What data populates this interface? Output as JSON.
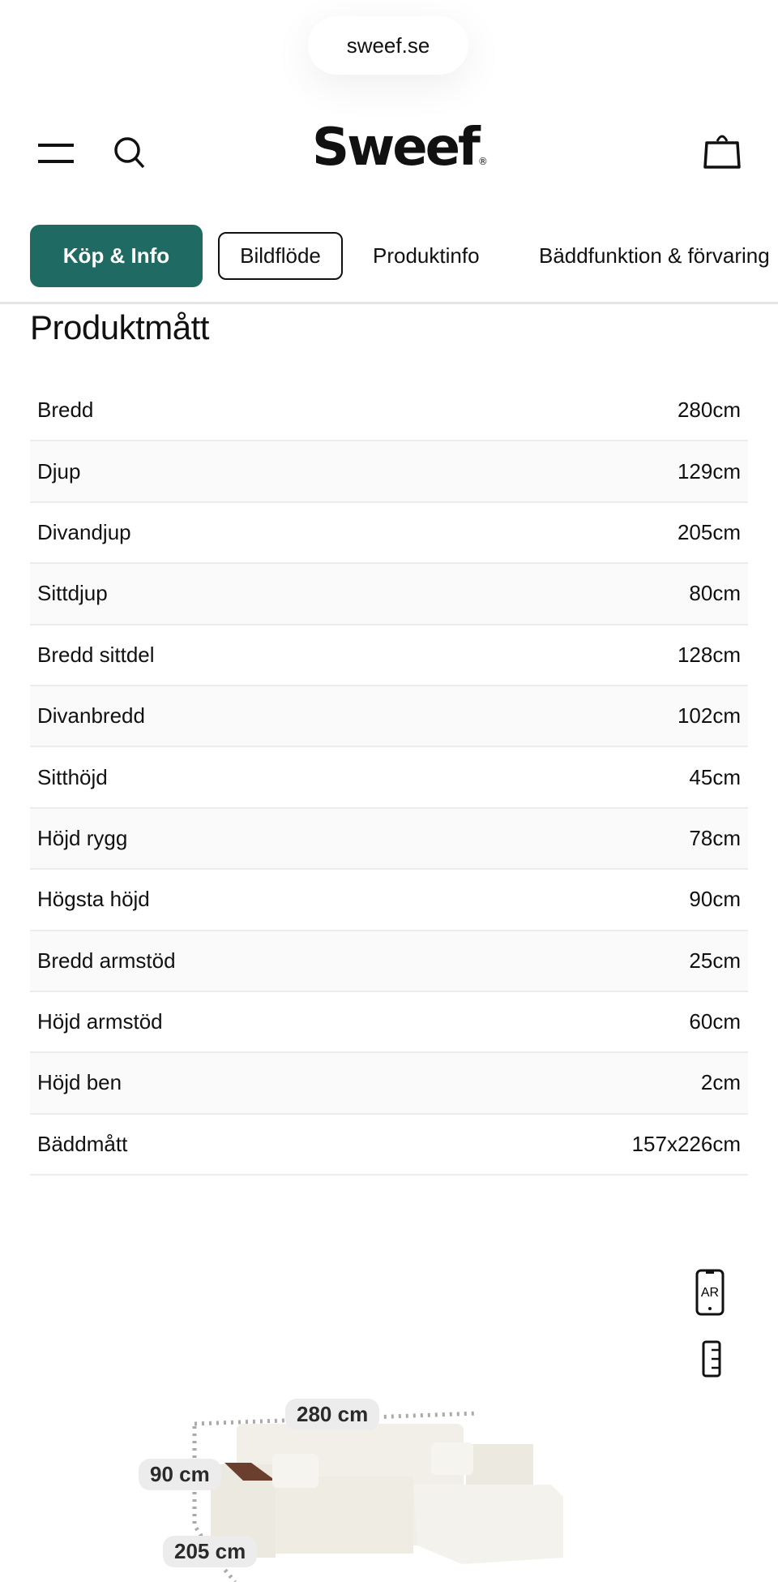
{
  "browser": {
    "url": "sweef.se"
  },
  "header": {
    "logo": "Sweef",
    "menu_icon": "hamburger-icon",
    "search_icon": "search-icon",
    "cart_icon": "bag-icon"
  },
  "tabs": [
    {
      "label": "Köp & Info",
      "active": true
    },
    {
      "label": "Bildflöde"
    },
    {
      "label": "Produktinfo"
    },
    {
      "label": "Bäddfunktion & förvaring"
    }
  ],
  "accent_color": "#1f6b64",
  "section": {
    "title": "Produktmått",
    "rows": [
      {
        "label": "Bredd",
        "value": "280cm"
      },
      {
        "label": "Djup",
        "value": "129cm"
      },
      {
        "label": "Divandjup",
        "value": "205cm"
      },
      {
        "label": "Sittdjup",
        "value": "80cm"
      },
      {
        "label": "Bredd sittdel",
        "value": "128cm"
      },
      {
        "label": "Divanbredd",
        "value": "102cm"
      },
      {
        "label": "Sitthöjd",
        "value": "45cm"
      },
      {
        "label": "Höjd rygg",
        "value": "78cm"
      },
      {
        "label": "Högsta höjd",
        "value": "90cm"
      },
      {
        "label": "Bredd armstöd",
        "value": "25cm"
      },
      {
        "label": "Höjd armstöd",
        "value": "60cm"
      },
      {
        "label": "Höjd ben",
        "value": "2cm"
      },
      {
        "label": "Bäddmått",
        "value": "157x226cm"
      }
    ]
  },
  "viewer": {
    "ar_label": "AR",
    "dim_width": "280 cm",
    "dim_height": "90 cm",
    "dim_depth": "205 cm"
  }
}
